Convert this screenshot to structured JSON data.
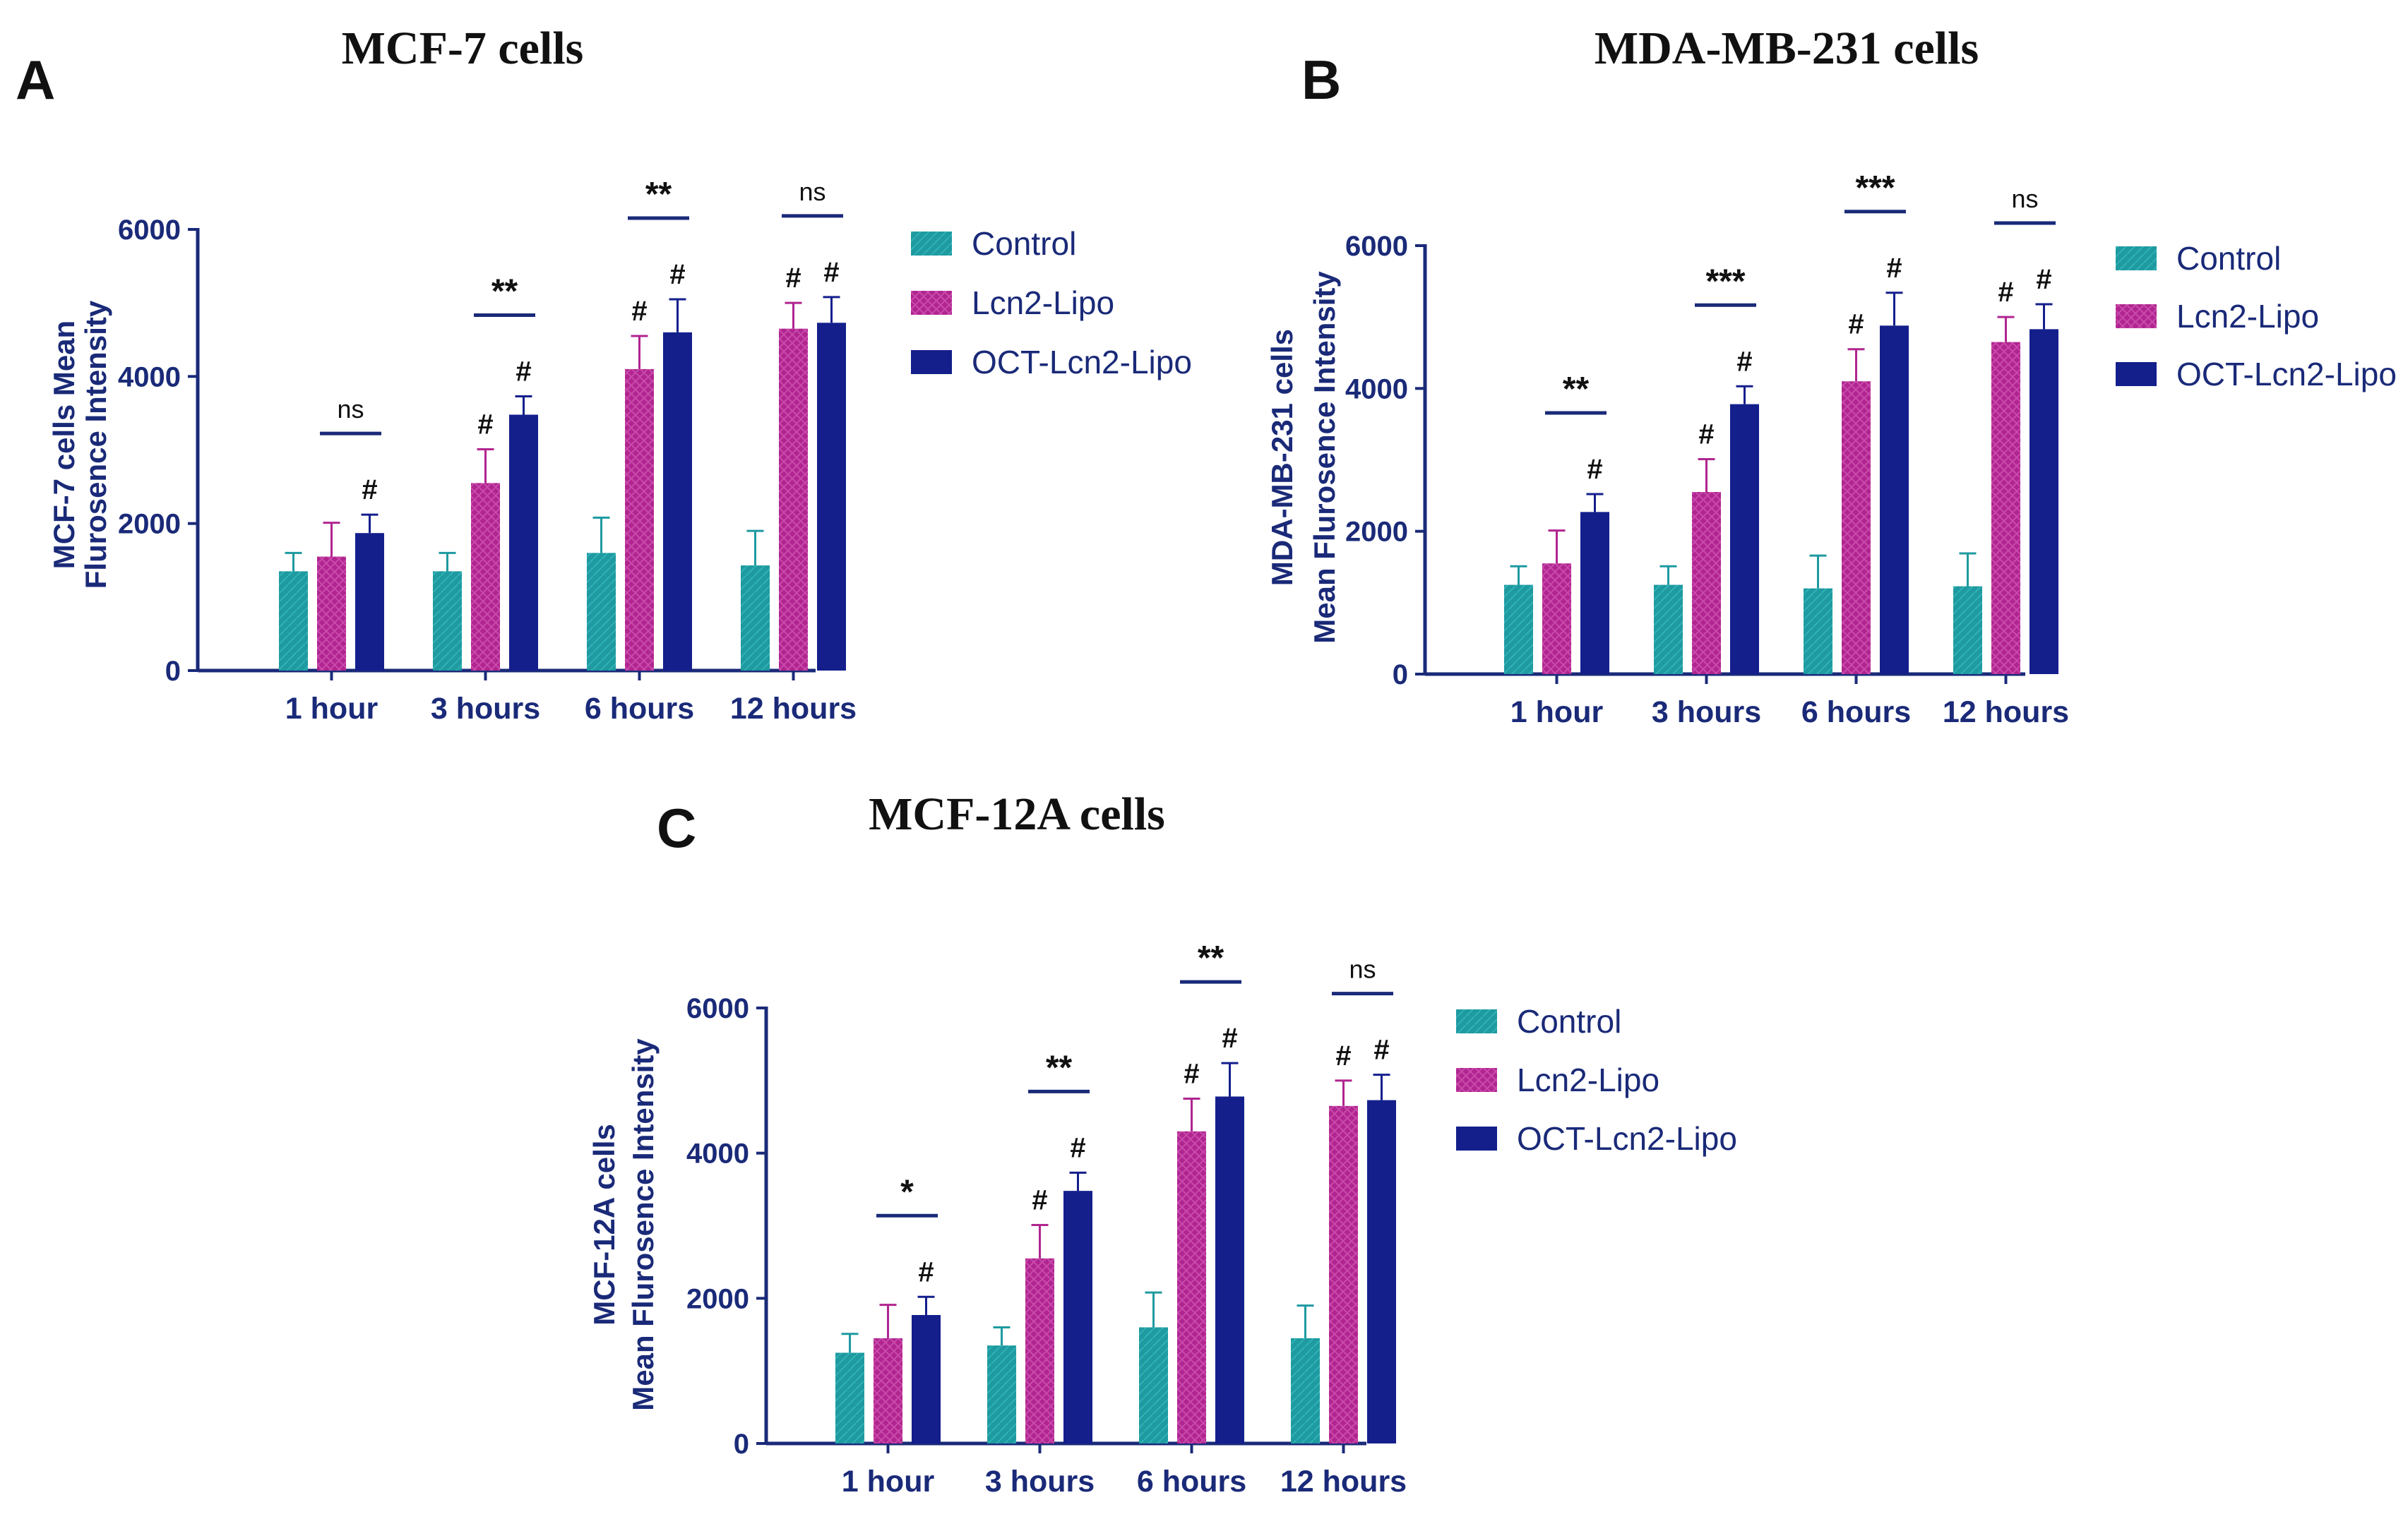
{
  "colors": {
    "axis": "#1a2a78",
    "text": "#111111",
    "control": "#1e9aa0",
    "lcn2": "#b02590",
    "oct": "#141f8c"
  },
  "legend": {
    "items": [
      {
        "label": "Control",
        "color": "#1e9aa0"
      },
      {
        "label": "Lcn2-Lipo",
        "color": "#b02590"
      },
      {
        "label": "OCT-Lcn2-Lipo",
        "color": "#141f8c"
      }
    ]
  },
  "chart_data": [
    {
      "panel": "A",
      "type": "bar",
      "title": "MCF-7 cells",
      "ylabel_lines": [
        "MCF-7 cells Mean",
        "Flurosence Intensity"
      ],
      "xlabel": "",
      "ylim": [
        0,
        6000
      ],
      "yticks": [
        0,
        2000,
        4000,
        6000
      ],
      "categories": [
        "1 hour",
        "3 hours",
        "6 hours",
        "12 hours"
      ],
      "series": [
        {
          "name": "Control",
          "values": [
            1350,
            1350,
            1600,
            1430
          ],
          "errors": [
            250,
            250,
            480,
            470
          ]
        },
        {
          "name": "Lcn2-Lipo",
          "values": [
            1550,
            2550,
            4100,
            4650
          ],
          "errors": [
            460,
            460,
            450,
            350
          ]
        },
        {
          "name": "OCT-Lcn2-Lipo",
          "values": [
            1870,
            3480,
            4600,
            4730
          ],
          "errors": [
            250,
            250,
            450,
            350
          ]
        }
      ],
      "hash_marks": [
        [
          false,
          false,
          true
        ],
        [
          false,
          true,
          true
        ],
        [
          false,
          true,
          true
        ],
        [
          false,
          true,
          true
        ]
      ],
      "significance": [
        "ns",
        "**",
        "**",
        "ns"
      ]
    },
    {
      "panel": "B",
      "type": "bar",
      "title": "MDA-MB-231 cells",
      "ylabel_lines": [
        "MDA-MB-231 cells",
        "Mean Flurosence  Intensity"
      ],
      "xlabel": "",
      "ylim": [
        0,
        6000
      ],
      "yticks": [
        0,
        2000,
        4000,
        6000
      ],
      "categories": [
        "1 hour",
        "3 hours",
        "6 hours",
        "12 hours"
      ],
      "series": [
        {
          "name": "Control",
          "values": [
            1250,
            1250,
            1200,
            1230
          ],
          "errors": [
            260,
            260,
            460,
            460
          ]
        },
        {
          "name": "Lcn2-Lipo",
          "values": [
            1550,
            2550,
            4100,
            4650
          ],
          "errors": [
            460,
            460,
            450,
            350
          ]
        },
        {
          "name": "OCT-Lcn2-Lipo",
          "values": [
            2270,
            3780,
            4880,
            4830
          ],
          "errors": [
            250,
            250,
            460,
            350
          ]
        }
      ],
      "hash_marks": [
        [
          false,
          false,
          true
        ],
        [
          false,
          true,
          true
        ],
        [
          false,
          true,
          true
        ],
        [
          false,
          true,
          true
        ]
      ],
      "significance": [
        "**",
        "***",
        "***",
        "ns"
      ]
    },
    {
      "panel": "C",
      "type": "bar",
      "title": "MCF-12A cells",
      "ylabel_lines": [
        "MCF-12A cells",
        "Mean Flurosence  Intensity"
      ],
      "xlabel": "",
      "ylim": [
        0,
        6000
      ],
      "yticks": [
        0,
        2000,
        4000,
        6000
      ],
      "categories": [
        "1 hour",
        "3 hours",
        "6 hours",
        "12 hours"
      ],
      "series": [
        {
          "name": "Control",
          "values": [
            1250,
            1350,
            1600,
            1450
          ],
          "errors": [
            260,
            250,
            480,
            450
          ]
        },
        {
          "name": "Lcn2-Lipo",
          "values": [
            1450,
            2550,
            4300,
            4650
          ],
          "errors": [
            460,
            460,
            450,
            350
          ]
        },
        {
          "name": "OCT-Lcn2-Lipo",
          "values": [
            1770,
            3480,
            4780,
            4730
          ],
          "errors": [
            250,
            250,
            460,
            350
          ]
        }
      ],
      "hash_marks": [
        [
          false,
          false,
          true
        ],
        [
          false,
          true,
          true
        ],
        [
          false,
          true,
          true
        ],
        [
          false,
          true,
          true
        ]
      ],
      "significance": [
        "*",
        "**",
        "**",
        "ns"
      ]
    }
  ]
}
